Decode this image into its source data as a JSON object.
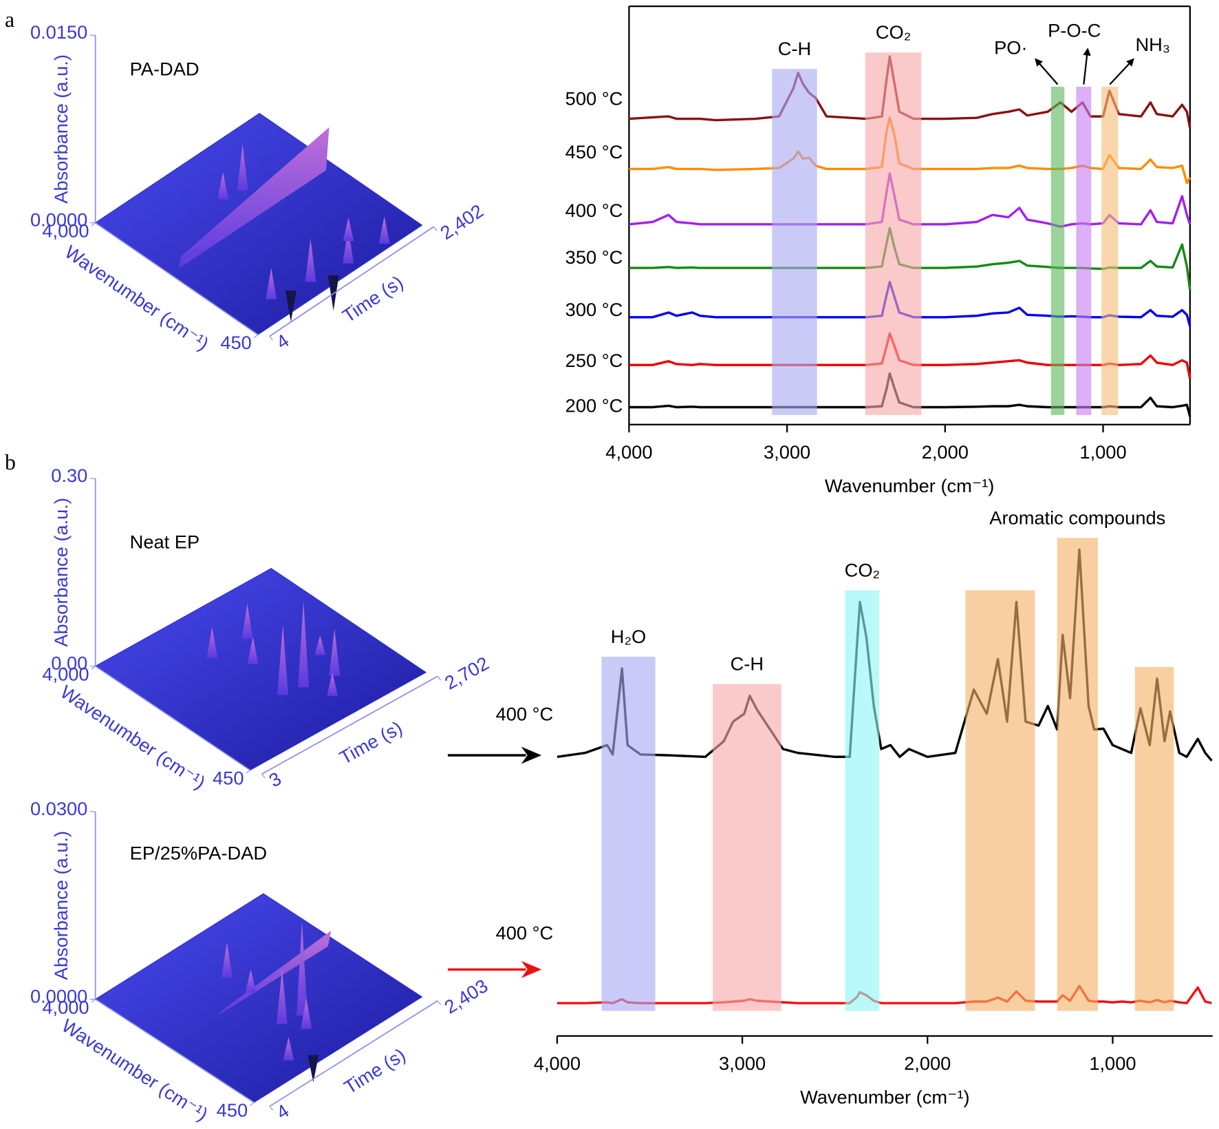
{
  "panel_labels": [
    "a",
    "b"
  ],
  "chart_data": [
    {
      "type": "surface3d",
      "title": "PA-DAD",
      "color": "#2e2ed2",
      "zlabel": "Absorbance (a.u.)",
      "zlim": [
        0,
        0.015
      ],
      "zticks": [
        {
          "value": 0,
          "label": "0.0000"
        },
        {
          "value": 0.015,
          "label": "0.0150"
        }
      ],
      "xlabel": "Wavenumber (cm⁻¹)",
      "xlim": [
        4000,
        450
      ],
      "xticks": [
        {
          "value": 4000,
          "label": "4,000"
        },
        450
      ],
      "ylabel": "Time (s)",
      "ylim": [
        4,
        2402
      ],
      "yticks": [
        4,
        {
          "value": 2402,
          "label": "2,402"
        }
      ]
    },
    {
      "type": "line",
      "xlabel": "Wavenumber (cm⁻¹)",
      "xlim": [
        4000,
        450
      ],
      "ylim": [
        -0.37,
        8.55
      ],
      "xticks": [
        {
          "value": 4000,
          "label": "4,000"
        },
        {
          "value": 3000,
          "label": "3,000"
        },
        {
          "value": 2000,
          "label": "2,000"
        },
        {
          "value": 1000,
          "label": "1,000"
        }
      ],
      "x": [
        4000,
        3850,
        3750,
        3700,
        3600,
        3550,
        3450,
        3200,
        3050,
        2960,
        2930,
        2900,
        2860,
        2820,
        2750,
        2500,
        2400,
        2370,
        2350,
        2320,
        2290,
        2200,
        2000,
        1800,
        1700,
        1600,
        1530,
        1480,
        1350,
        1270,
        1200,
        1130,
        1080,
        1000,
        960,
        900,
        760,
        700,
        660,
        560,
        500,
        470,
        450
      ],
      "series": [
        {
          "name": "500 °C",
          "color": "#8b1010",
          "values": [
            6.15,
            6.18,
            6.2,
            6.15,
            6.15,
            6.15,
            6.12,
            6.15,
            6.2,
            6.8,
            7.13,
            6.9,
            6.7,
            6.6,
            6.2,
            6.15,
            6.2,
            7.0,
            7.48,
            6.9,
            6.3,
            6.15,
            6.15,
            6.17,
            6.25,
            6.3,
            6.35,
            6.22,
            6.3,
            6.5,
            6.3,
            6.5,
            6.2,
            6.2,
            6.75,
            6.25,
            6.2,
            6.5,
            6.25,
            6.2,
            6.45,
            6.3,
            5.95
          ]
        },
        {
          "name": "450 °C",
          "color": "#ff8c00",
          "values": [
            5.08,
            5.08,
            5.12,
            5.08,
            5.08,
            5.08,
            5.06,
            5.08,
            5.1,
            5.3,
            5.45,
            5.3,
            5.32,
            5.15,
            5.08,
            5.08,
            5.12,
            5.9,
            6.18,
            5.8,
            5.2,
            5.08,
            5.08,
            5.08,
            5.1,
            5.1,
            5.15,
            5.1,
            5.08,
            5.08,
            5.1,
            5.15,
            5.1,
            5.08,
            5.38,
            5.1,
            5.08,
            5.28,
            5.12,
            5.1,
            5.15,
            4.78,
            4.9
          ]
        },
        {
          "name": "400 °C",
          "color": "#a020f0",
          "values": [
            3.9,
            3.95,
            4.1,
            3.95,
            3.92,
            3.9,
            3.9,
            3.9,
            3.9,
            3.9,
            3.9,
            3.9,
            3.9,
            3.9,
            3.9,
            3.9,
            3.95,
            4.6,
            4.98,
            4.5,
            4.0,
            3.9,
            3.9,
            3.95,
            4.1,
            4.05,
            4.25,
            4.0,
            3.92,
            3.85,
            3.9,
            3.92,
            3.9,
            3.92,
            4.1,
            3.92,
            3.9,
            4.2,
            3.95,
            3.92,
            4.5,
            4.1,
            3.9
          ]
        },
        {
          "name": "350 °C",
          "color": "#138a13",
          "values": [
            2.97,
            2.97,
            2.99,
            2.97,
            2.98,
            2.97,
            2.97,
            2.97,
            2.97,
            2.97,
            2.97,
            2.97,
            2.97,
            2.97,
            2.97,
            2.97,
            3.0,
            3.5,
            3.82,
            3.4,
            3.05,
            2.97,
            2.97,
            3.0,
            3.05,
            3.08,
            3.12,
            3.02,
            2.99,
            2.97,
            2.97,
            2.97,
            2.96,
            2.95,
            2.98,
            2.97,
            2.97,
            3.12,
            3.0,
            2.98,
            3.47,
            3.0,
            2.5
          ]
        },
        {
          "name": "300 °C",
          "color": "#0000ee",
          "values": [
            1.92,
            1.92,
            2.02,
            1.95,
            2.02,
            1.95,
            1.92,
            1.92,
            1.92,
            1.92,
            1.92,
            1.92,
            1.92,
            1.92,
            1.92,
            1.92,
            1.95,
            2.4,
            2.67,
            2.35,
            2.02,
            1.92,
            1.92,
            1.95,
            2.0,
            2.02,
            2.12,
            1.97,
            1.95,
            1.93,
            1.94,
            1.93,
            1.92,
            1.92,
            1.96,
            1.93,
            1.92,
            2.07,
            1.95,
            1.93,
            2.07,
            1.97,
            1.72
          ]
        },
        {
          "name": "250 °C",
          "color": "#ee0000",
          "values": [
            0.9,
            0.9,
            0.98,
            0.92,
            0.9,
            0.92,
            0.9,
            0.9,
            0.9,
            0.9,
            0.9,
            0.9,
            0.9,
            0.9,
            0.9,
            0.9,
            0.93,
            1.3,
            1.57,
            1.3,
            1.0,
            0.9,
            0.9,
            0.92,
            0.95,
            0.98,
            1.0,
            0.95,
            0.9,
            0.9,
            0.9,
            0.9,
            0.9,
            0.9,
            0.93,
            0.9,
            0.92,
            1.1,
            0.95,
            0.9,
            1.0,
            0.95,
            0.6
          ]
        },
        {
          "name": "200 °C",
          "color": "#000000",
          "values": [
            0,
            0,
            0.03,
            0,
            0.01,
            0,
            0,
            0,
            0,
            0,
            0,
            0,
            0,
            0,
            0,
            0,
            0.02,
            0.4,
            0.72,
            0.4,
            0.1,
            0,
            0,
            0.01,
            0.02,
            0.02,
            0.05,
            0.02,
            0,
            0,
            0,
            0,
            0,
            0,
            0.02,
            0,
            0,
            0.2,
            0.02,
            0,
            0.03,
            0.05,
            -0.2
          ]
        }
      ],
      "bands": [
        {
          "label": "C-H",
          "from": 3095,
          "to": 2810,
          "color": "#a9a9f2"
        },
        {
          "label": "CO₂",
          "from": 2505,
          "to": 2150,
          "color": "#f7a8a8"
        },
        {
          "label": "PO·",
          "from": 1330,
          "to": 1245,
          "color": "#5fb85f"
        },
        {
          "label": "P-O-C",
          "from": 1170,
          "to": 1075,
          "color": "#c57ff0"
        },
        {
          "label": "NH₃",
          "from": 1010,
          "to": 905,
          "color": "#f6bd77"
        }
      ]
    },
    {
      "type": "surface3d",
      "title": "Neat EP",
      "color": "#2e2ed2",
      "zlabel": "Absorbance (a.u.)",
      "zlim": [
        0,
        0.3
      ],
      "zticks": [
        {
          "value": 0,
          "label": "0.00"
        },
        {
          "value": 0.3,
          "label": "0.30"
        }
      ],
      "xlabel": "Wavenumber (cm⁻¹)",
      "xlim": [
        4000,
        450
      ],
      "xticks": [
        {
          "value": 4000,
          "label": "4,000"
        },
        450
      ],
      "ylabel": "Time (s)",
      "ylim": [
        3,
        2702
      ],
      "yticks": [
        3,
        {
          "value": 2702,
          "label": "2,702"
        }
      ]
    },
    {
      "type": "surface3d",
      "title": "EP/25%PA-DAD",
      "color": "#2e2ed2",
      "zlabel": "Absorbance (a.u.)",
      "zlim": [
        0,
        0.03
      ],
      "zticks": [
        {
          "value": 0,
          "label": "0.0000"
        },
        {
          "value": 0.03,
          "label": "0.0300"
        }
      ],
      "xlabel": "Wavenumber (cm⁻¹)",
      "xlim": [
        4000,
        450
      ],
      "xticks": [
        {
          "value": 4000,
          "label": "4,000"
        },
        450
      ],
      "ylabel": "Time (s)",
      "ylim": [
        4,
        2403
      ],
      "yticks": [
        4,
        {
          "value": 2403,
          "label": "2,403"
        }
      ]
    },
    {
      "type": "line",
      "xlabel": "Wavenumber (cm⁻¹)",
      "xlim": [
        4000,
        460
      ],
      "ylim": [
        -0.42,
        6.33
      ],
      "xticks": [
        {
          "value": 4000,
          "label": "4,000"
        },
        {
          "value": 3000,
          "label": "3,000"
        },
        {
          "value": 2000,
          "label": "2,000"
        },
        {
          "value": 1000,
          "label": "1,000"
        }
      ],
      "x": [
        4000,
        3850,
        3730,
        3700,
        3650,
        3620,
        3550,
        3400,
        3200,
        3100,
        3050,
        2990,
        2960,
        2920,
        2850,
        2780,
        2700,
        2500,
        2420,
        2380,
        2365,
        2330,
        2290,
        2250,
        2200,
        2150,
        2100,
        2000,
        1850,
        1750,
        1680,
        1620,
        1570,
        1520,
        1470,
        1400,
        1350,
        1300,
        1270,
        1230,
        1180,
        1130,
        1100,
        1050,
        1000,
        950,
        900,
        850,
        800,
        760,
        720,
        690,
        640,
        600,
        540,
        500,
        465
      ],
      "series": [
        {
          "name": "400 °C",
          "color": "#000000",
          "values": [
            3.15,
            3.2,
            3.3,
            3.18,
            4.28,
            3.3,
            3.18,
            3.17,
            3.15,
            3.35,
            3.6,
            3.7,
            3.93,
            3.75,
            3.5,
            3.25,
            3.2,
            3.15,
            3.15,
            4.6,
            5.13,
            4.68,
            3.8,
            3.25,
            3.3,
            3.15,
            3.25,
            3.15,
            3.2,
            4.01,
            3.7,
            4.4,
            3.6,
            5.13,
            3.6,
            3.55,
            3.8,
            3.5,
            4.71,
            3.9,
            5.8,
            3.8,
            3.5,
            3.51,
            3.3,
            3.25,
            3.2,
            3.77,
            3.3,
            4.15,
            3.35,
            3.73,
            3.2,
            3.15,
            3.38,
            3.2,
            3.1
          ]
        },
        {
          "name": "400 °C",
          "color": "#ee1111",
          "values": [
            0,
            0,
            0.01,
            0,
            0.05,
            0.01,
            0,
            0,
            0,
            0.01,
            0.02,
            0.03,
            0.05,
            0.03,
            0.02,
            0.01,
            0,
            0,
            0,
            0.08,
            0.14,
            0.1,
            0.03,
            0,
            0,
            0,
            0,
            0,
            0,
            0.02,
            0.02,
            0.07,
            0.02,
            0.15,
            0.03,
            0.02,
            0.02,
            0.02,
            0.1,
            0.03,
            0.22,
            0.03,
            0.02,
            0.02,
            0.01,
            0.02,
            0.01,
            0.03,
            0.01,
            0.04,
            0.01,
            0.03,
            0.01,
            0,
            0.2,
            0.02,
            0
          ]
        }
      ],
      "bands": [
        {
          "label": "H₂O",
          "from": 3760,
          "to": 3470,
          "color": "#a9a9f5"
        },
        {
          "label": "C-H",
          "from": 3160,
          "to": 2790,
          "color": "#f7aaaa"
        },
        {
          "label": "CO₂",
          "from": 2445,
          "to": 2260,
          "color": "#8ff5f5"
        },
        {
          "from": 1795,
          "to": 1420,
          "color": "#f4b266"
        },
        {
          "label": "Aromatic compounds",
          "from": 1300,
          "to": 1080,
          "color": "#f4b266"
        },
        {
          "from": 880,
          "to": 670,
          "color": "#f4b266"
        }
      ]
    }
  ]
}
